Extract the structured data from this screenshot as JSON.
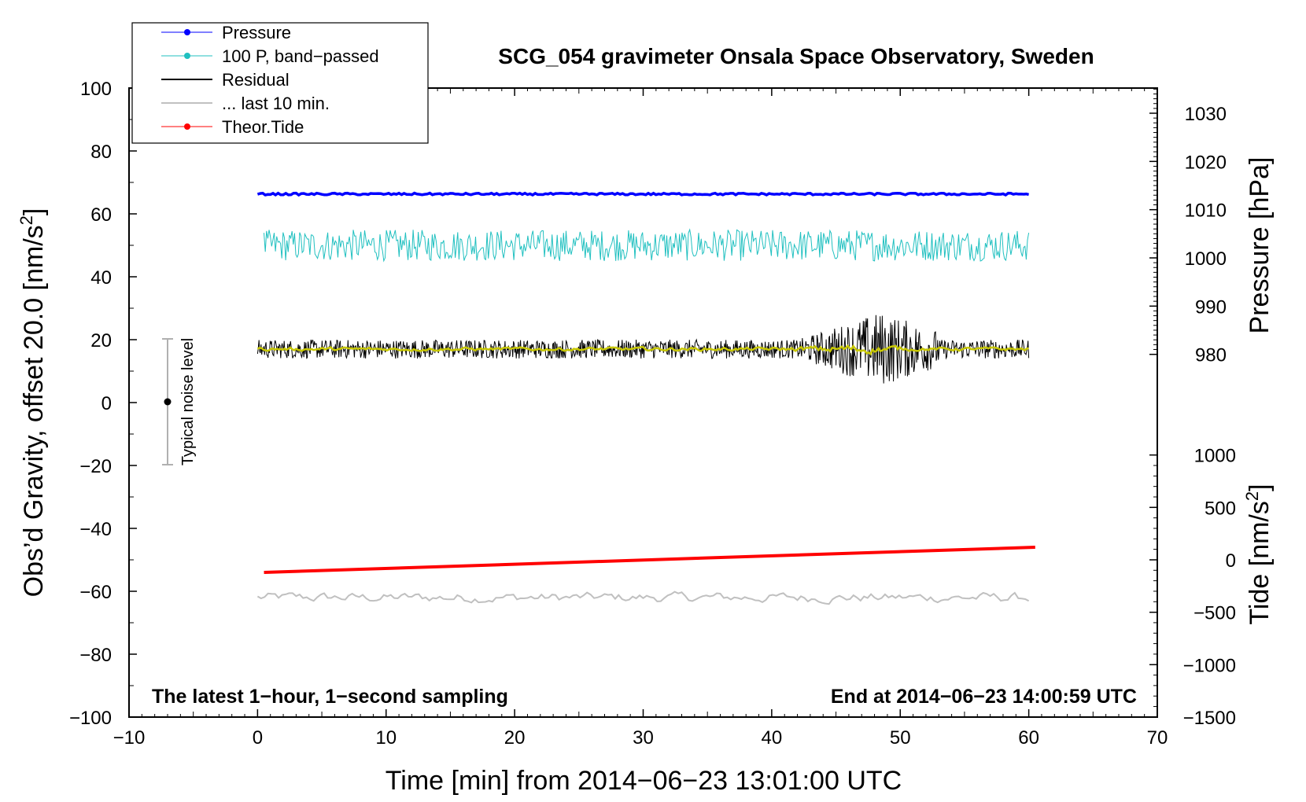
{
  "chart_data": {
    "type": "line",
    "title": "SCG_054 gravimeter Onsala Space Observatory, Sweden",
    "xlabel": "Time [min] from 2014−06−23 13:01:00 UTC",
    "ylabel": "Obs’d Gravity, offset 20.0 [nm/s²]",
    "ylabel_main": "Obs’d Gravity, offset 20.0 [nm/s",
    "ylabel_sup": "2",
    "ylabel_close": "]",
    "xlim": [
      -10,
      70
    ],
    "ylim": [
      -100,
      100
    ],
    "x_ticks": [
      "−10",
      "0",
      "10",
      "20",
      "30",
      "40",
      "50",
      "60",
      "70"
    ],
    "x_tick_values": [
      -10,
      0,
      10,
      20,
      30,
      40,
      50,
      60,
      70
    ],
    "y_ticks": [
      "100",
      "80",
      "60",
      "40",
      "20",
      "0",
      "−20",
      "−40",
      "−60",
      "−80",
      "−100"
    ],
    "y_tick_values": [
      100,
      80,
      60,
      40,
      20,
      0,
      -20,
      -40,
      -60,
      -80,
      -100
    ],
    "pressure_axis": {
      "label": "Pressure [hPa]",
      "ticks": [
        "1030",
        "1020",
        "1010",
        "1000",
        "990",
        "980"
      ],
      "tick_values": [
        1030,
        1020,
        1010,
        1000,
        990,
        980
      ],
      "maps_to_gravity": [
        92,
        76.67,
        61.33,
        46,
        30.67,
        15.33
      ]
    },
    "tide_axis": {
      "label_main": "Tide [nm/s",
      "label_sup": "2",
      "label_close": "]",
      "ticks": [
        "1000",
        "500",
        "0",
        "−500",
        "−1000",
        "−1500"
      ],
      "tick_values": [
        1000,
        500,
        0,
        -500,
        -1000,
        -1500
      ],
      "maps_to_gravity": [
        -16.67,
        -33.33,
        -50,
        -66.67,
        -83.33,
        -100
      ]
    },
    "legend": [
      {
        "label": "Pressure",
        "color": "#0000ff",
        "marker": true
      },
      {
        "label": "100 P, band−passed",
        "color": "#20c0c0",
        "marker": true
      },
      {
        "label": "Residual",
        "color": "#000000",
        "marker": false
      },
      {
        "label": "... last 10 min.",
        "color": "#c0c0c0",
        "marker": false
      },
      {
        "label": "Theor.Tide",
        "color": "#ff0000",
        "marker": true
      }
    ],
    "series": [
      {
        "name": "Pressure",
        "color": "#0000ff",
        "x_range": [
          0,
          60
        ],
        "level": 66.3,
        "amplitude": 0.3
      },
      {
        "name": "100 P, band−passed",
        "color": "#20c0c0",
        "x_range": [
          0.5,
          60
        ],
        "level": 50,
        "amplitude": 5
      },
      {
        "name": "Residual",
        "color": "#000000",
        "x_range": [
          0,
          60
        ],
        "level": 17,
        "amplitude": 3,
        "burst": {
          "x_range": [
            40,
            53
          ],
          "amplitude": 12
        }
      },
      {
        "name": "Residual smoothed",
        "color": "#c8c800",
        "x_range": [
          0,
          60
        ],
        "level": 17,
        "amplitude": 1
      },
      {
        "name": "... last 10 min.",
        "color": "#c0c0c0",
        "x_range": [
          0,
          60
        ],
        "level": -62,
        "amplitude": 3
      },
      {
        "name": "Theor.Tide",
        "color": "#ff0000",
        "x": [
          0.5,
          60.5
        ],
        "y": [
          -54,
          -46
        ]
      }
    ],
    "noise_bar": {
      "label": "Typical noise level",
      "x": -7,
      "center": 0,
      "range": [
        -20,
        20
      ]
    },
    "annotation_left": "The latest 1−hour, 1−second sampling",
    "annotation_right": "End at 2014−06−23 14:00:59 UTC"
  }
}
